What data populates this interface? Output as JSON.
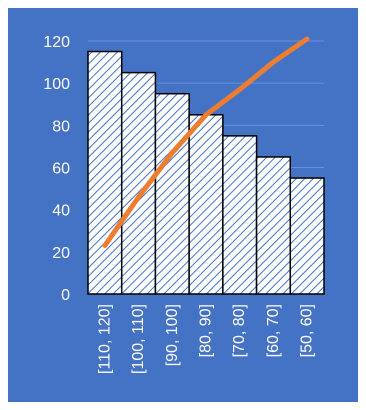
{
  "chart_data": {
    "type": "bar",
    "categories": [
      "[110, 120]",
      "[100, 110]",
      "[90, 100]",
      "[80, 90]",
      "[70, 80]",
      "[60, 70]",
      "[50, 60]"
    ],
    "series": [
      {
        "type": "bar",
        "values": [
          115,
          105,
          95,
          85,
          75,
          65,
          55
        ]
      },
      {
        "type": "line",
        "values": [
          23,
          46,
          67,
          85,
          97,
          110,
          121
        ]
      }
    ],
    "ylim": [
      0,
      120
    ],
    "yticks": [
      0,
      20,
      40,
      60,
      80,
      100,
      120
    ],
    "grid": true,
    "legend": "none",
    "colors": {
      "background": "#4472c4",
      "gridline": "#6f8fd4",
      "bar_fill": "#ffffff",
      "bar_hatch": "#4472c4",
      "bar_border": "#000000",
      "line": "#ed7d31",
      "text": "#ffffff"
    }
  }
}
